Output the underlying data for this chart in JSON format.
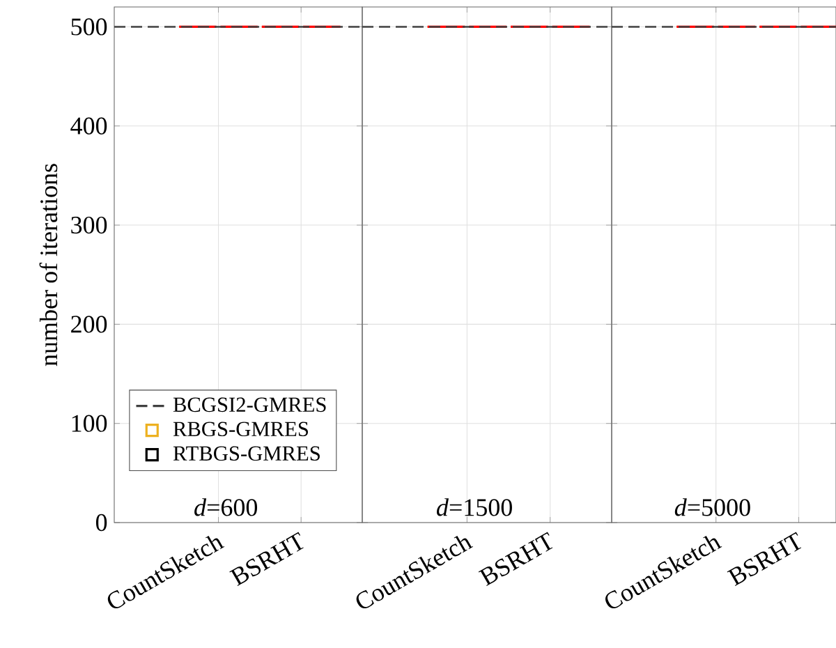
{
  "chart_data": [
    {
      "type": "box",
      "ylabel": "number of iterations",
      "categories": [
        "CountSketch",
        "BSRHT"
      ],
      "ylim": [
        0,
        520
      ],
      "yticks": [
        0,
        100,
        200,
        300,
        400,
        500
      ],
      "grid": true,
      "legend": "bottom left",
      "annotations": [
        "*d*=600"
      ],
      "ref_lines": [
        {
          "axis": "y",
          "value": 500,
          "label": "BCGSI2-GMRES",
          "color": "#404040",
          "line_style": "dashed"
        }
      ],
      "series": [
        {
          "name": "RBGS-GMRES",
          "color": "#edb120",
          "boxes": [
            {
              "low": 500,
              "q1": 500,
              "median": 500,
              "q3": 500,
              "high": 500
            },
            {
              "low": 500,
              "q1": 500,
              "median": 500,
              "q3": 500,
              "high": 500
            }
          ]
        },
        {
          "name": "RTBGS-GMRES",
          "color": "#000000",
          "boxes": [
            {
              "low": 500,
              "q1": 500,
              "median": 500,
              "q3": 500,
              "high": 500
            },
            {
              "low": 500,
              "q1": 500,
              "median": 500,
              "q3": 500,
              "high": 500
            }
          ]
        }
      ]
    },
    {
      "type": "box",
      "categories": [
        "CountSketch",
        "BSRHT"
      ],
      "ylim": [
        0,
        520
      ],
      "yticks": [
        0,
        100,
        200,
        300,
        400,
        500
      ],
      "grid": true,
      "tick_labels": "x",
      "annotations": [
        "*d*=1500"
      ],
      "ref_lines": [
        {
          "axis": "y",
          "value": 500,
          "color": "#404040",
          "line_style": "dashed"
        }
      ],
      "series": [
        {
          "color": "#edb120",
          "boxes": [
            {
              "low": 500,
              "q1": 500,
              "median": 500,
              "q3": 500,
              "high": 500
            },
            {
              "low": 500,
              "q1": 500,
              "median": 500,
              "q3": 500,
              "high": 500
            }
          ]
        },
        {
          "color": "#000000",
          "boxes": [
            {
              "low": 500,
              "q1": 500,
              "median": 500,
              "q3": 500,
              "high": 500
            },
            {
              "low": 500,
              "q1": 500,
              "median": 500,
              "q3": 500,
              "high": 500
            }
          ]
        }
      ]
    },
    {
      "type": "box",
      "categories": [
        "CountSketch",
        "BSRHT"
      ],
      "ylim": [
        0,
        520
      ],
      "yticks": [
        0,
        100,
        200,
        300,
        400,
        500
      ],
      "grid": true,
      "tick_labels": "x",
      "annotations": [
        "*d*=5000"
      ],
      "ref_lines": [
        {
          "axis": "y",
          "value": 500,
          "color": "#404040",
          "line_style": "dashed"
        }
      ],
      "series": [
        {
          "color": "#edb120",
          "boxes": [
            {
              "low": 500,
              "q1": 500,
              "median": 500,
              "q3": 500,
              "high": 500
            },
            {
              "low": 500,
              "q1": 500,
              "median": 500,
              "q3": 500,
              "high": 500
            }
          ]
        },
        {
          "color": "#000000",
          "boxes": [
            {
              "low": 500,
              "q1": 500,
              "median": 500,
              "q3": 500,
              "high": 500
            },
            {
              "low": 500,
              "q1": 500,
              "median": 500,
              "q3": 500,
              "high": 500
            }
          ]
        }
      ]
    }
  ]
}
